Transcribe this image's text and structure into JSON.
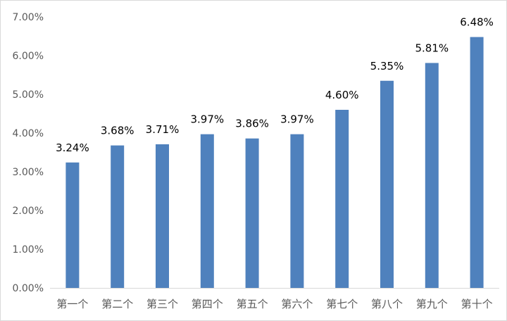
{
  "chart_data": {
    "type": "bar",
    "categories": [
      "第一个",
      "第二个",
      "第三个",
      "第四个",
      "第五个",
      "第六个",
      "第七个",
      "第八个",
      "第九个",
      "第十个"
    ],
    "values": [
      3.24,
      3.68,
      3.71,
      3.97,
      3.86,
      3.97,
      4.6,
      5.35,
      5.81,
      6.48
    ],
    "data_labels": [
      "3.24%",
      "3.68%",
      "3.71%",
      "3.97%",
      "3.86%",
      "3.97%",
      "4.60%",
      "5.35%",
      "5.81%",
      "6.48%"
    ],
    "ytick_values": [
      0,
      1,
      2,
      3,
      4,
      5,
      6,
      7
    ],
    "ytick_labels": [
      "0.00%",
      "1.00%",
      "2.00%",
      "3.00%",
      "4.00%",
      "5.00%",
      "6.00%",
      "7.00%"
    ],
    "ylim": [
      0,
      7
    ],
    "grid": false,
    "legend": "none",
    "bar_color": "#4f81bd",
    "axis_color": "#d9d9d9"
  }
}
